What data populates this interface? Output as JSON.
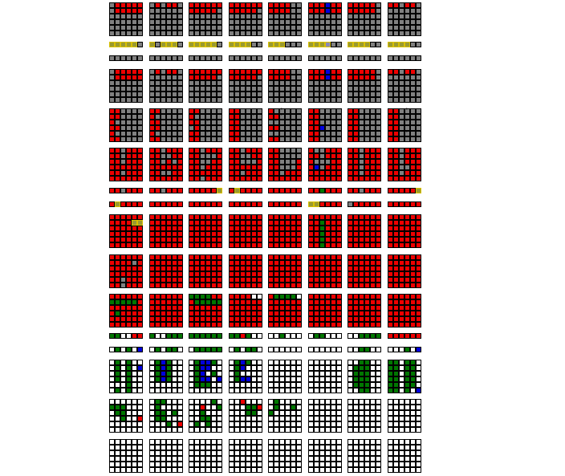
{
  "palette": {
    "R": "#ee0000",
    "g": "#808080",
    "G": "#007700",
    "B": "#0000dd",
    "W": "#ffffff",
    "Y": "#9a9a30",
    "P": "#8888bb",
    "H": "#707070"
  },
  "highlight_border": "#d8c000",
  "rows": [
    {
      "height": 6,
      "panels": [
        [
          "gRRRRR",
          "gRRRRR",
          "gggggg",
          "gggggg",
          "gggggg",
          "gggggg"
        ],
        [
          "gRgRRg",
          "gggggg",
          "gggggg",
          "gggggg",
          "gggggg",
          "gggggg"
        ],
        [
          "RRRRRR",
          "RRRRRg",
          "gggggg",
          "gggggg",
          "gggggg",
          "gggggg"
        ],
        [
          "RRRRRR",
          "RRRRRg",
          "gggggg",
          "gggggg",
          "gggggg",
          "gggggg"
        ],
        [
          "RRRRgg",
          "RRRRgg",
          "gggggg",
          "gggggg",
          "gggggg",
          "gggggg"
        ],
        [
          "RRRBRR",
          "RRRBRR",
          "gggggg",
          "gggggg",
          "gggggg",
          "gggggg"
        ],
        [
          "RRRRRg",
          "RRRRRg",
          "gggggg",
          "gggggg",
          "gggggg",
          "gggggg"
        ],
        [
          "RRgRRg",
          "gggggg",
          "gggggg",
          "gggggg",
          "gggggg",
          "gggggg"
        ]
      ]
    },
    {
      "height": 1,
      "panels": [
        [
          "YYYYYg"
        ],
        [
          "YgYYYg"
        ],
        [
          "YYYYYg"
        ],
        [
          "YYYYgg"
        ],
        [
          "YYYggg"
        ],
        [
          "YYYPgg"
        ],
        [
          "YYYYgg"
        ],
        [
          "YYYYgg"
        ]
      ]
    },
    {
      "height": 1,
      "panels": [
        [
          "gggggg"
        ],
        [
          "gggggg"
        ],
        [
          "gggggg"
        ],
        [
          "gggggg"
        ],
        [
          "gggggg"
        ],
        [
          "gggggg"
        ],
        [
          "gggggg"
        ],
        [
          "gggggg"
        ]
      ]
    },
    {
      "height": 6,
      "panels": [
        [
          "gRRRRR",
          "gRRRRR",
          "gggggg",
          "gggggg",
          "gggggg",
          "gggggg"
        ],
        [
          "gRgRRg",
          "gggggg",
          "gggggg",
          "gggggg",
          "gggggg",
          "gggggg"
        ],
        [
          "RRRRRR",
          "RRRRRg",
          "gggggg",
          "gggggg",
          "gggggg",
          "gggggg"
        ],
        [
          "RRRRRR",
          "RRRRRg",
          "gggggg",
          "gggggg",
          "gggggg",
          "gggggg"
        ],
        [
          "RRRRgg",
          "RRRRgg",
          "gggggg",
          "gggggg",
          "gggggg",
          "gggggg"
        ],
        [
          "RRRBRR",
          "RRRBRR",
          "gggggg",
          "gggggg",
          "gggggg",
          "gggggg"
        ],
        [
          "RRRRRg",
          "RRRRRg",
          "gggggg",
          "gggggg",
          "gggggg",
          "gggggg"
        ],
        [
          "RRgRRg",
          "gggggg",
          "gggggg",
          "gggggg",
          "gggggg",
          "gggggg"
        ]
      ]
    },
    {
      "height": 6,
      "panels": [
        [
          "RRgggg",
          "RRgggg",
          "Rggggg",
          "RRgggg",
          "Rggggg",
          "RRgggg"
        ],
        [
          "RRgggg",
          "Rggggg",
          "RRgggg",
          "RRgggg",
          "Rggggg",
          "RRgggg"
        ],
        [
          "RRgggg",
          "Rggggg",
          "RRgHgg",
          "HRgggg",
          "RRgHgg",
          "RRgggg"
        ],
        [
          "RRgggg",
          "RRggHg",
          "RRHggg",
          "RRgggg",
          "RRgggg",
          "RRgggg"
        ],
        [
          "RgHggg",
          "RRHggg",
          "gHgggg",
          "RRgggg",
          "gggggg",
          "RRgggg"
        ],
        [
          "RRgggg",
          "RRgggg",
          "RRgggg",
          "RRBggg",
          "RRgggg",
          "RRgggg"
        ],
        [
          "RRgggg",
          "RRgggg",
          "RRgggg",
          "RRgHgg",
          "RRgggg",
          "RRgggg"
        ],
        [
          "RRgHgg",
          "RRgggg",
          "RRgHgg",
          "RRgggg",
          "RRgHgg",
          "RRgggg"
        ]
      ]
    },
    {
      "height": 6,
      "panels": [
        [
          "RRgRRR",
          "RRgRRR",
          "RRgRRR",
          "RRRRRR",
          "RRgRRR",
          "RRRRRR"
        ],
        [
          "RRgRRR",
          "RRggRR",
          "RRgRgR",
          "RRRRRR",
          "RRggRR",
          "RRRRRR"
        ],
        [
          "RRgRRR",
          "RRgggR",
          "RRggRR",
          "RRgRRR",
          "RRRRRR",
          "RRgRRR"
        ],
        [
          "RRgRRR",
          "RRggRR",
          "RRgggR",
          "RRRRRR",
          "RRgRRR",
          "RRRRRR"
        ],
        [
          "RRgggg",
          "RRgggg",
          "RRgggR",
          "RRgggR",
          "RRgRRR",
          "RRRRRR"
        ],
        [
          "RggRRR",
          "RRgRRR",
          "RgggRR",
          "RBgRRR",
          "RRRRRR",
          "RRRRRR"
        ],
        [
          "RRgRRR",
          "RRgRRR",
          "RRgRRR",
          "RRgRRR",
          "RRgRRR",
          "RRRRRR"
        ],
        [
          "RRgRRR",
          "RRgRRR",
          "RRgRRR",
          "RRggRR",
          "RRgRRR",
          "RRRRRR"
        ]
      ]
    },
    {
      "height": 1,
      "panels": [
        [
          "RRgRRR"
        ],
        [
          "RRgRRR"
        ],
        [
          "RRRRRY"
        ],
        [
          "RYRRRR"
        ],
        [
          "RRRRRR"
        ],
        [
          "RRGRRR"
        ],
        [
          "RRgRRR"
        ],
        [
          "RRRRRY"
        ]
      ]
    },
    {
      "height": 1,
      "panels": [
        [
          "RYRRRR"
        ],
        [
          "RRRRRR"
        ],
        [
          "RRRRRR"
        ],
        [
          "RRRRRR"
        ],
        [
          "RRRRRR"
        ],
        [
          "YYRRRR"
        ],
        [
          "gRRRRR"
        ],
        [
          "RRRRRR"
        ]
      ]
    },
    {
      "height": 6,
      "panels": [
        [
          "RRRRRR",
          "RRRRYY",
          "RRRRRR",
          "RRRRRR",
          "RRRRRR",
          "RRRRRR"
        ],
        [
          "RRRRRR",
          "RRRRRR",
          "RRRRRR",
          "RRRRRR",
          "RRRRRR",
          "RRRRRR"
        ],
        [
          "RRRRRR",
          "RRRRRR",
          "RRRRRR",
          "RRRRRR",
          "RRRRRR",
          "RRRRRR"
        ],
        [
          "RRRRRR",
          "RRRRRR",
          "RRRRRR",
          "RRRRRR",
          "RRRRRR",
          "RRRRRR"
        ],
        [
          "RRRRRR",
          "RRRRRR",
          "RRRRRR",
          "RRRRRR",
          "RRRRRR",
          "RRRRRR"
        ],
        [
          "RRRRRR",
          "RRGRRR",
          "RRGRRR",
          "RRGRRR",
          "RRGRRR",
          "RRGRRR"
        ],
        [
          "RRRRRR",
          "RRRRRR",
          "RRRRRR",
          "RRRRRR",
          "RRRRRR",
          "RRRRRR"
        ],
        [
          "RRRRRR",
          "RRRRRR",
          "RRRRRR",
          "RRRRRR",
          "RRRRRR",
          "RRRRRR"
        ]
      ]
    },
    {
      "height": 6,
      "panels": [
        [
          "RRRRRR",
          "RRRRgR",
          "RRRRRR",
          "RRRRRR",
          "RRgRRR",
          "RRgRRR"
        ],
        [
          "RRRRRR",
          "RRRRRR",
          "RRRRRR",
          "RRRRRR",
          "RRRRRR",
          "RRRRRR"
        ],
        [
          "RRRRRR",
          "RRRRRR",
          "RRRRRR",
          "RRRRRR",
          "RRRRRR",
          "RRRRRR"
        ],
        [
          "RRRRRR",
          "RRRRRR",
          "RRRRRR",
          "RRRRRR",
          "RRRRRR",
          "RRRRRR"
        ],
        [
          "RRRRRR",
          "RRRRRR",
          "RRRRRR",
          "RRRRRR",
          "RRRRRR",
          "RRRRRR"
        ],
        [
          "RRRRRR",
          "RRRRRR",
          "RRRRRR",
          "RRRRRR",
          "RRRRRR",
          "RRRRRR"
        ],
        [
          "RRRRRR",
          "RRRRRR",
          "RRRRRR",
          "RRRRRR",
          "RRRRRR",
          "RRRRRR"
        ],
        [
          "RRRRRR",
          "RRRRRR",
          "RRRRRR",
          "RRRRRR",
          "RRRRRR",
          "RRRRRR"
        ]
      ]
    },
    {
      "height": 6,
      "panels": [
        [
          "RRRRRR",
          "GGGGGR",
          "RRRRRR",
          "RGRRRR",
          "RRRRRR",
          "RRRRRR"
        ],
        [
          "RRRRRR",
          "RRRRRR",
          "RRRRRR",
          "RRRRRR",
          "RRRRRR",
          "RRRRRR"
        ],
        [
          "GGGGRR",
          "RGGGGG",
          "RRRRRR",
          "RRRRRR",
          "RRRRRR",
          "RRRRRR"
        ],
        [
          "RRRRWW",
          "RRRRRR",
          "RRRRRR",
          "RRRRRR",
          "RRRRRR",
          "RRRRRR"
        ],
        [
          "RGGGGW",
          "RRRRRR",
          "RRRRRR",
          "RRRRRR",
          "RRRRRR",
          "RRRRRR"
        ],
        [
          "RRRRRR",
          "RRRRRR",
          "RRRRRR",
          "RRRRRR",
          "RRRRRR",
          "RRRRRR"
        ],
        [
          "RRRRRR",
          "RRRRRR",
          "RRRRRR",
          "RRRRRR",
          "RRRRRR",
          "RRRRRR"
        ],
        [
          "RRRRRR",
          "RRRRRR",
          "RRRRRR",
          "RRRRRR",
          "RRRRRR",
          "RRRRRR"
        ]
      ]
    },
    {
      "height": 1,
      "panels": [
        [
          "GGWWRR"
        ],
        [
          "GWWGGG"
        ],
        [
          "GGGGGG"
        ],
        [
          "GGRGWW"
        ],
        [
          "WWGWWW"
        ],
        [
          "WGGWWW"
        ],
        [
          "WWGGGG"
        ],
        [
          "RRRRRR"
        ]
      ]
    },
    {
      "height": 1,
      "panels": [
        [
          "WGWGWB"
        ],
        [
          "WGWGGW"
        ],
        [
          "WGGGGG"
        ],
        [
          "WGWGGW"
        ],
        [
          "WWWWWW"
        ],
        [
          "WWWWWW"
        ],
        [
          "WWGGWW"
        ],
        [
          "WWWGWB"
        ]
      ]
    },
    {
      "height": 6,
      "panels": [
        [
          "WGWGWW",
          "WGWGWB",
          "WGWGWW",
          "WGWGWW",
          "WWWGWW",
          "WGWGWW"
        ],
        [
          "WGBGWW",
          "WGBGWW",
          "WGBGWW",
          "WGBGWW",
          "WWWWWW",
          "WWWWWW"
        ],
        [
          "WGBBGW",
          "WGBBWW",
          "WGBWGW",
          "WGBBWB",
          "WGGGWW",
          "WWWWWW"
        ],
        [
          "WGBGWW",
          "WGBWWW",
          "WGWWWW",
          "WGBBWW",
          "WWWWWW",
          "WWWWWW"
        ],
        [
          "WWWWWW",
          "WWWWWW",
          "WWWWWW",
          "WWWWWW",
          "WWWWWW",
          "WWWWWW"
        ],
        [
          "WWWWWW",
          "WWWWWW",
          "WWWWWW",
          "WWWWWW",
          "WWWWWW",
          "WWWWWW"
        ],
        [
          "WWGGWW",
          "WGGGWW",
          "WGGGWW",
          "WGGGWW",
          "WGGGWW",
          "WWGGWW"
        ],
        [
          "GGWGGW",
          "GGWGGW",
          "GGWGGW",
          "GGWGGW",
          "GGWGGW",
          "GGWGWB"
        ]
      ]
    },
    {
      "height": 6,
      "panels": [
        [
          "WWWWWW",
          "GGGWWW",
          "WGGWWW",
          "WWGWWR",
          "WWWWWW",
          "WWWWWW"
        ],
        [
          "WGGWWW",
          "WGWWWW",
          "WGGWGW",
          "WGGWWW",
          "WWWGWR",
          "WWWWWW"
        ],
        [
          "WWWWGW",
          "WWRWWG",
          "WWGWWW",
          "WWGGWW",
          "WGWGWW",
          "WWWWWW"
        ],
        [
          "WWRWWW",
          "WWWGGR",
          "WWWGGW",
          "WWWWWW",
          "WWWWWW",
          "WWWWWW"
        ],
        [
          "WGWWWW",
          "WGWWGW",
          "GWWWWW",
          "WWWWWW",
          "WWWWWW",
          "WWWWWW"
        ],
        [
          "WWWWWW",
          "WWWWWW",
          "WWWWWW",
          "WWWWWW",
          "WWWWWW",
          "WWWWWW"
        ],
        [
          "WWWWWW",
          "WWWWWW",
          "WWWWWW",
          "WWWWWW",
          "WWWWWW",
          "WWWWWW"
        ],
        [
          "WWWWWW",
          "WWWWWW",
          "WWWWWW",
          "WWWWWW",
          "WWWWWW",
          "WWWWWW"
        ]
      ]
    },
    {
      "height": 6,
      "panels": [
        [
          "WWWWWW",
          "WWWWWW",
          "WWWWWW",
          "WWWWWW",
          "WWWWWW",
          "WWWWWW"
        ],
        [
          "WWWWWW",
          "WWWWWW",
          "WWWWWW",
          "WWWWWW",
          "WWWWWW",
          "WWWWWW"
        ],
        [
          "WWWWWW",
          "WWWWWW",
          "WWWWWW",
          "WWWWWW",
          "WWWWWW",
          "WWWWWW"
        ],
        [
          "WWWWWW",
          "WWWWWW",
          "WWWWWW",
          "WWWWWW",
          "WWWWWW",
          "WWWWWW"
        ],
        [
          "WWWWWW",
          "WWWWWW",
          "WWWWWW",
          "WWWWWW",
          "WWWWWW",
          "WWWWWW"
        ],
        [
          "WWWWWW",
          "WWWWWW",
          "WWWWWW",
          "WWWWWW",
          "WWWWWW",
          "WWWWWW"
        ],
        [
          "WWWWWW",
          "WWWWWW",
          "WWWWWW",
          "WWWWWW",
          "WWWWWW",
          "WWWWWW"
        ],
        [
          "WWWWWW",
          "WWWWWW",
          "WWWWWW",
          "WWWWWW",
          "WWWWWW",
          "WWWWWW"
        ]
      ]
    }
  ]
}
